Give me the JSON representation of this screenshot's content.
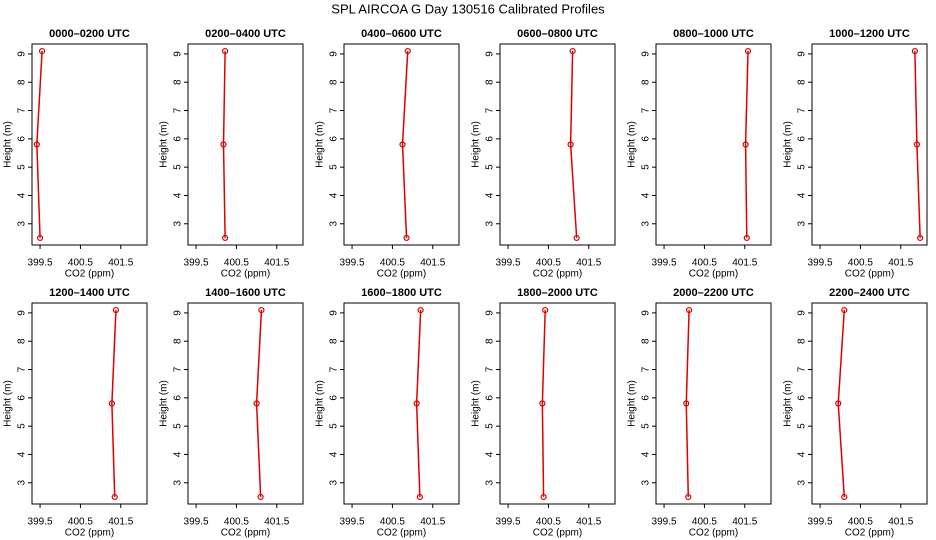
{
  "title": "SPL AIRCOA G  Day 130516  Calibrated Profiles",
  "chart_data": [
    {
      "type": "line",
      "title": "0000–0200 UTC",
      "xlabel": "CO2 (ppm)",
      "ylabel": "Height (m)",
      "color": "#e00000",
      "x": [
        399.5,
        399.42,
        399.55
      ],
      "values": [
        2.5,
        5.8,
        9.1
      ],
      "xlim": [
        399.3,
        402.15
      ],
      "ylim": [
        2.25,
        9.35
      ],
      "xticks": [
        399.5,
        400.5,
        401.5
      ],
      "yticks": [
        3,
        4,
        5,
        6,
        7,
        8,
        9
      ]
    },
    {
      "type": "line",
      "title": "0200–0400 UTC",
      "xlabel": "CO2 (ppm)",
      "ylabel": "Height (m)",
      "color": "#e00000",
      "x": [
        400.22,
        400.18,
        400.22
      ],
      "values": [
        2.5,
        5.8,
        9.1
      ],
      "xlim": [
        399.3,
        402.15
      ],
      "ylim": [
        2.25,
        9.35
      ],
      "xticks": [
        399.5,
        400.5,
        401.5
      ],
      "yticks": [
        3,
        4,
        5,
        6,
        7,
        8,
        9
      ]
    },
    {
      "type": "line",
      "title": "0400–0600 UTC",
      "xlabel": "CO2 (ppm)",
      "ylabel": "Height (m)",
      "color": "#e00000",
      "x": [
        400.85,
        400.75,
        400.88
      ],
      "values": [
        2.5,
        5.8,
        9.1
      ],
      "xlim": [
        399.3,
        402.15
      ],
      "ylim": [
        2.25,
        9.35
      ],
      "xticks": [
        399.5,
        400.5,
        401.5
      ],
      "yticks": [
        3,
        4,
        5,
        6,
        7,
        8,
        9
      ]
    },
    {
      "type": "line",
      "title": "0600–0800 UTC",
      "xlabel": "CO2 (ppm)",
      "ylabel": "Height (m)",
      "color": "#e00000",
      "x": [
        401.2,
        401.05,
        401.1
      ],
      "values": [
        2.5,
        5.8,
        9.1
      ],
      "xlim": [
        399.3,
        402.15
      ],
      "ylim": [
        2.25,
        9.35
      ],
      "xticks": [
        399.5,
        400.5,
        401.5
      ],
      "yticks": [
        3,
        4,
        5,
        6,
        7,
        8,
        9
      ]
    },
    {
      "type": "line",
      "title": "0800–1000 UTC",
      "xlabel": "CO2 (ppm)",
      "ylabel": "Height (m)",
      "color": "#e00000",
      "x": [
        401.55,
        401.52,
        401.58
      ],
      "values": [
        2.5,
        5.8,
        9.1
      ],
      "xlim": [
        399.3,
        402.15
      ],
      "ylim": [
        2.25,
        9.35
      ],
      "xticks": [
        399.5,
        400.5,
        401.5
      ],
      "yticks": [
        3,
        4,
        5,
        6,
        7,
        8,
        9
      ]
    },
    {
      "type": "line",
      "title": "1000–1200 UTC",
      "xlabel": "CO2 (ppm)",
      "ylabel": "Height (m)",
      "color": "#e00000",
      "x": [
        401.98,
        401.9,
        401.85
      ],
      "values": [
        2.5,
        5.8,
        9.1
      ],
      "xlim": [
        399.3,
        402.15
      ],
      "ylim": [
        2.25,
        9.35
      ],
      "xticks": [
        399.5,
        400.5,
        401.5
      ],
      "yticks": [
        3,
        4,
        5,
        6,
        7,
        8,
        9
      ]
    },
    {
      "type": "line",
      "title": "1200–1400 UTC",
      "xlabel": "CO2 (ppm)",
      "ylabel": "Height (m)",
      "color": "#e00000",
      "x": [
        401.35,
        401.28,
        401.38
      ],
      "values": [
        2.5,
        5.8,
        9.1
      ],
      "xlim": [
        399.3,
        402.15
      ],
      "ylim": [
        2.25,
        9.35
      ],
      "xticks": [
        399.5,
        400.5,
        401.5
      ],
      "yticks": [
        3,
        4,
        5,
        6,
        7,
        8,
        9
      ]
    },
    {
      "type": "line",
      "title": "1400–1600 UTC",
      "xlabel": "CO2 (ppm)",
      "ylabel": "Height (m)",
      "color": "#e00000",
      "x": [
        401.1,
        401.0,
        401.12
      ],
      "values": [
        2.5,
        5.8,
        9.1
      ],
      "xlim": [
        399.3,
        402.15
      ],
      "ylim": [
        2.25,
        9.35
      ],
      "xticks": [
        399.5,
        400.5,
        401.5
      ],
      "yticks": [
        3,
        4,
        5,
        6,
        7,
        8,
        9
      ]
    },
    {
      "type": "line",
      "title": "1600–1800 UTC",
      "xlabel": "CO2 (ppm)",
      "ylabel": "Height (m)",
      "color": "#e00000",
      "x": [
        401.18,
        401.1,
        401.2
      ],
      "values": [
        2.5,
        5.8,
        9.1
      ],
      "xlim": [
        399.3,
        402.15
      ],
      "ylim": [
        2.25,
        9.35
      ],
      "xticks": [
        399.5,
        400.5,
        401.5
      ],
      "yticks": [
        3,
        4,
        5,
        6,
        7,
        8,
        9
      ]
    },
    {
      "type": "line",
      "title": "1800–2000 UTC",
      "xlabel": "CO2 (ppm)",
      "ylabel": "Height (m)",
      "color": "#e00000",
      "x": [
        400.38,
        400.35,
        400.42
      ],
      "values": [
        2.5,
        5.8,
        9.1
      ],
      "xlim": [
        399.3,
        402.15
      ],
      "ylim": [
        2.25,
        9.35
      ],
      "xticks": [
        399.5,
        400.5,
        401.5
      ],
      "yticks": [
        3,
        4,
        5,
        6,
        7,
        8,
        9
      ]
    },
    {
      "type": "line",
      "title": "2000–2200 UTC",
      "xlabel": "CO2 (ppm)",
      "ylabel": "Height (m)",
      "color": "#e00000",
      "x": [
        400.1,
        400.05,
        400.12
      ],
      "values": [
        2.5,
        5.8,
        9.1
      ],
      "xlim": [
        399.3,
        402.15
      ],
      "ylim": [
        2.25,
        9.35
      ],
      "xticks": [
        399.5,
        400.5,
        401.5
      ],
      "yticks": [
        3,
        4,
        5,
        6,
        7,
        8,
        9
      ]
    },
    {
      "type": "line",
      "title": "2200–2400 UTC",
      "xlabel": "CO2 (ppm)",
      "ylabel": "Height (m)",
      "color": "#e00000",
      "x": [
        400.1,
        399.95,
        400.1
      ],
      "values": [
        2.5,
        5.8,
        9.1
      ],
      "xlim": [
        399.3,
        402.15
      ],
      "ylim": [
        2.25,
        9.35
      ],
      "xticks": [
        399.5,
        400.5,
        401.5
      ],
      "yticks": [
        3,
        4,
        5,
        6,
        7,
        8,
        9
      ]
    }
  ]
}
